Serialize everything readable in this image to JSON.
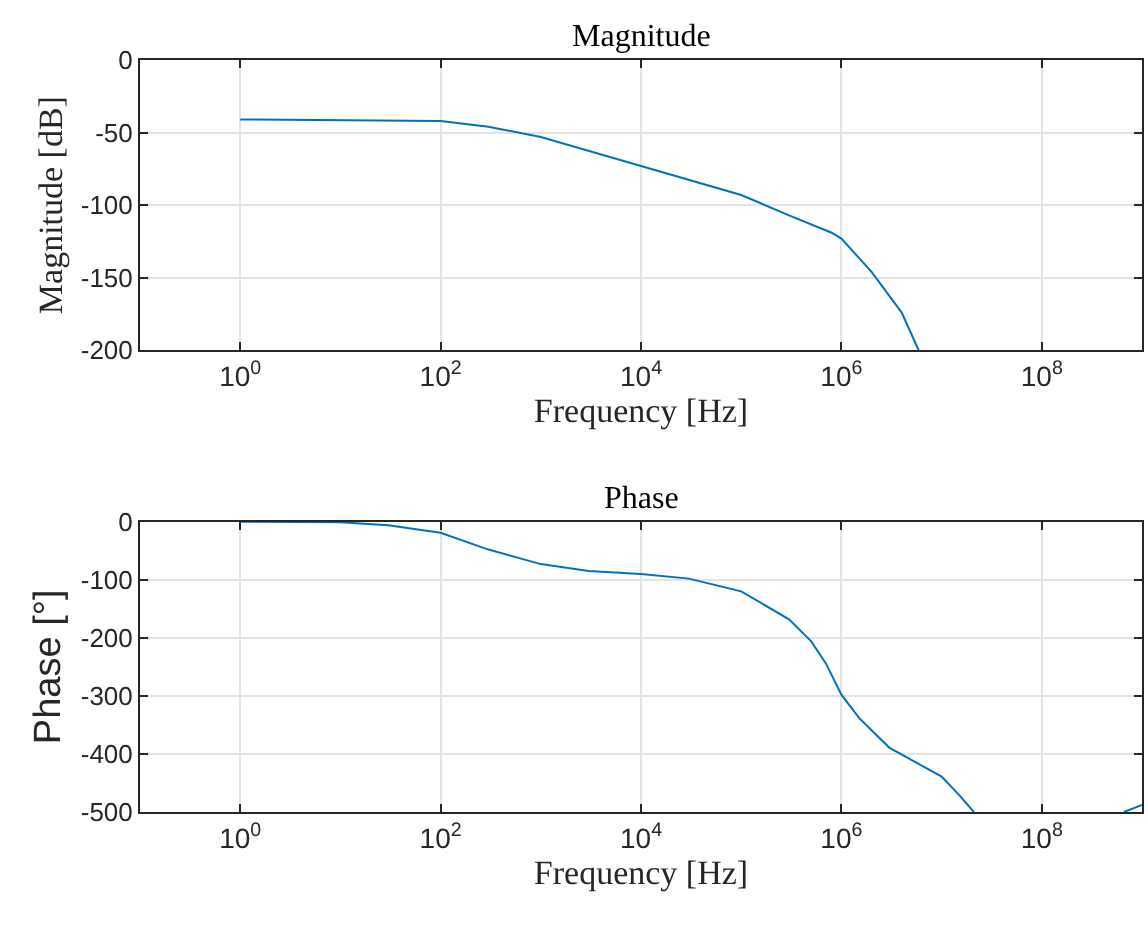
{
  "chart_data": [
    {
      "type": "line",
      "title": "Magnitude",
      "xlabel": "Frequency [Hz]",
      "ylabel": "Magnitude [dB]",
      "log": "x",
      "grid": true,
      "x": [
        1,
        100,
        300,
        1000,
        10000,
        100000,
        300000,
        800000,
        1000000,
        2000000,
        4000000,
        5900000
      ],
      "series": [
        {
          "color": "#0072bd",
          "values": [
            -41,
            -42,
            -46,
            -53,
            -73,
            -93,
            -107,
            -119,
            -123,
            -146,
            -174,
            -200
          ]
        }
      ],
      "xlim": [
        0.1,
        1000000000
      ],
      "xticks": [
        {
          "value": 1,
          "label": "10$^{0}$"
        },
        {
          "value": 100,
          "label": "10$^{2}$"
        },
        {
          "value": 10000,
          "label": "10$^{4}$"
        },
        {
          "value": 1000000,
          "label": "10$^{6}$"
        },
        {
          "value": 100000000,
          "label": "10$^{8}$"
        }
      ],
      "ylim": [
        -200,
        0
      ],
      "yticks": [
        -200,
        -150,
        -100,
        -50,
        0
      ]
    },
    {
      "type": "line",
      "title": "Phase",
      "xlabel": "Frequency [Hz]",
      "ylabel": "Phase [°]",
      "log": "x",
      "grid": true,
      "x": [
        1,
        10,
        30,
        100,
        300,
        1000,
        3000,
        10000,
        30000,
        100000,
        300000,
        500000,
        700000,
        1000000,
        1500000,
        3000000,
        10000000,
        15000000,
        21000000,
        100000000,
        660000000,
        1000000000
      ],
      "series": [
        {
          "color": "#0072bd",
          "values": [
            0,
            -1,
            -6,
            -19,
            -48,
            -73,
            -85,
            -90,
            -98,
            -120,
            -168,
            -206,
            -244,
            -298,
            -338,
            -389,
            -439,
            -471,
            -500,
            null,
            -500,
            -488
          ]
        }
      ],
      "xlim": [
        0.1,
        1000000000
      ],
      "xticks": [
        {
          "value": 1,
          "label": "10$^{0}$"
        },
        {
          "value": 100,
          "label": "10$^{2}$"
        },
        {
          "value": 10000,
          "label": "10$^{4}$"
        },
        {
          "value": 1000000,
          "label": "10$^{6}$"
        },
        {
          "value": 100000000,
          "label": "10$^{8}$"
        }
      ],
      "ylim": [
        -500,
        0
      ],
      "yticks": [
        -500,
        -400,
        -300,
        -200,
        -100,
        0
      ]
    }
  ]
}
